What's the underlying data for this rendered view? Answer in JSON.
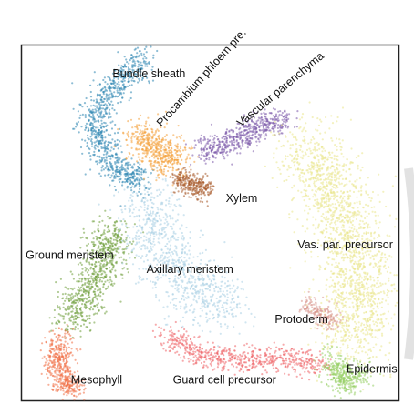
{
  "chart_data": {
    "type": "scatter",
    "title": "",
    "xlabel": "",
    "ylabel": "",
    "xlim": [
      0,
      100
    ],
    "ylim": [
      0,
      100
    ],
    "grid": false,
    "legend": "none",
    "axes_ticks": false,
    "clusters": [
      {
        "name": "Bundle sheath",
        "color": "#2f86b3",
        "label_pos": [
          24,
          91
        ],
        "label_rotate": 0,
        "path": [
          [
            32,
            97
          ],
          [
            28,
            92
          ],
          [
            22,
            85
          ],
          [
            19,
            78
          ],
          [
            21,
            70
          ],
          [
            27,
            64
          ],
          [
            31,
            62
          ]
        ],
        "spread": 2.2,
        "count": 900
      },
      {
        "name": "Procambium phloem pre.",
        "color": "#f4a13a",
        "label_pos": [
          37,
          77
        ],
        "label_rotate": -48,
        "path": [
          [
            31,
            75
          ],
          [
            34,
            72
          ],
          [
            38,
            69
          ],
          [
            41,
            67
          ]
        ],
        "spread": 2.6,
        "count": 500
      },
      {
        "name": "Vascular parenchyma",
        "color": "#7b5aa9",
        "label_pos": [
          58,
          77
        ],
        "label_rotate": -40,
        "path": [
          [
            47,
            70
          ],
          [
            53,
            72
          ],
          [
            59,
            75
          ],
          [
            64,
            78
          ],
          [
            70,
            79
          ]
        ],
        "spread": 1.8,
        "count": 550
      },
      {
        "name": "Xylem",
        "color": "#a85a2a",
        "label_pos": [
          54,
          56
        ],
        "label_rotate": 0,
        "path": [
          [
            41,
            63
          ],
          [
            45,
            61
          ],
          [
            49,
            59
          ]
        ],
        "spread": 1.5,
        "count": 280
      },
      {
        "name": "Ground meristem",
        "color": "#6f9e3d",
        "label_pos": [
          1,
          40
        ],
        "label_rotate": 0,
        "path": [
          [
            24,
            48
          ],
          [
            22,
            40
          ],
          [
            17,
            30
          ],
          [
            12,
            22
          ]
        ],
        "spread": 2.8,
        "count": 750
      },
      {
        "name": "Axillary meristem",
        "color": "#a9cfe3",
        "label_pos": [
          33,
          36
        ],
        "label_rotate": 0,
        "path": [
          [
            33,
            58
          ],
          [
            35,
            48
          ],
          [
            40,
            38
          ],
          [
            47,
            30
          ],
          [
            55,
            27
          ]
        ],
        "spread": 4.2,
        "count": 900
      },
      {
        "name": "Vas. par. precursor",
        "color": "#e9e58c",
        "label_pos": [
          73,
          43
        ],
        "label_rotate": 0,
        "path": [
          [
            75,
            72
          ],
          [
            82,
            62
          ],
          [
            86,
            50
          ],
          [
            89,
            38
          ],
          [
            90,
            26
          ],
          [
            87,
            16
          ]
        ],
        "spread": 5.0,
        "count": 1800
      },
      {
        "name": "Protoderm",
        "color": "#d9968e",
        "label_pos": [
          67,
          22
        ],
        "label_rotate": 0,
        "path": [
          [
            75,
            28
          ],
          [
            79,
            25
          ],
          [
            83,
            22
          ]
        ],
        "spread": 1.3,
        "count": 180
      },
      {
        "name": "Mesophyll",
        "color": "#f07046",
        "label_pos": [
          13,
          5
        ],
        "label_rotate": 0,
        "path": [
          [
            11,
            18
          ],
          [
            9,
            12
          ],
          [
            11,
            6
          ],
          [
            14,
            3
          ]
        ],
        "spread": 2.0,
        "count": 450
      },
      {
        "name": "Guard cell precursor",
        "color": "#ee6468",
        "label_pos": [
          40,
          5
        ],
        "label_rotate": 0,
        "path": [
          [
            38,
            19
          ],
          [
            47,
            13
          ],
          [
            58,
            12
          ],
          [
            69,
            12
          ],
          [
            80,
            10
          ]
        ],
        "spread": 1.8,
        "count": 650
      },
      {
        "name": "Epidermis",
        "color": "#98cf66",
        "label_pos": [
          86,
          8
        ],
        "label_rotate": 0,
        "path": [
          [
            82,
            12
          ],
          [
            84,
            7
          ],
          [
            87,
            5
          ],
          [
            90,
            9
          ]
        ],
        "spread": 2.0,
        "count": 380
      }
    ]
  }
}
